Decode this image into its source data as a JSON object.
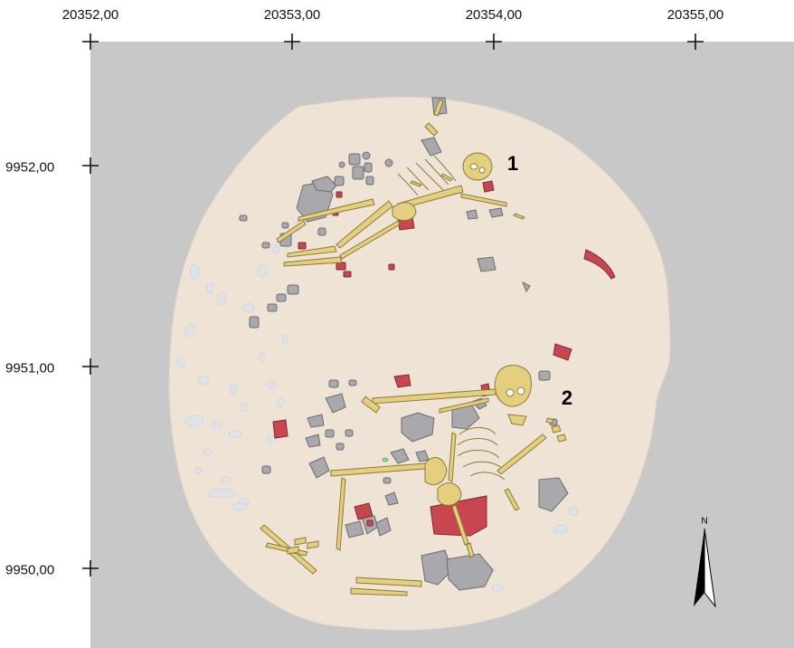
{
  "grid": {
    "x_labels": [
      "20352,00",
      "20353,00",
      "20354,00",
      "20355,00"
    ],
    "y_labels": [
      "9952,00",
      "9951,00",
      "9950,00"
    ]
  },
  "burials": [
    {
      "label": "1"
    },
    {
      "label": "2"
    }
  ],
  "north_arrow": {
    "label": "N"
  },
  "colors": {
    "background": "#c8c8c8",
    "pit_fill": "#efe3d6",
    "bone": "#e3cf7d",
    "bone_outline": "#8a7a3a",
    "stone": "#a9a9ad",
    "stone_outline": "#6c6c70",
    "stone_faint": "#d9dde3",
    "red_object": "#c8474f",
    "green_object": "#8fe08f"
  },
  "legend_icons": [
    "north-arrow-icon",
    "grid-cross-icon"
  ]
}
